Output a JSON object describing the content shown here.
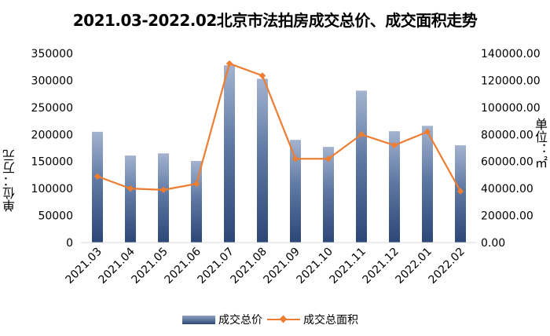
{
  "chart_data": {
    "type": "bar",
    "title": "2021.03-2022.02北京市法拍房成交总价、成交面积走势",
    "categories": [
      "2021.03",
      "2021.04",
      "2021.05",
      "2021.06",
      "2021.07",
      "2021.08",
      "2021.09",
      "2021.10",
      "2021.11",
      "2021.12",
      "2022.01",
      "2022.02"
    ],
    "series": [
      {
        "name": "成交总价",
        "type": "bar",
        "axis": "left",
        "values": [
          205000,
          161000,
          165000,
          151000,
          328000,
          303000,
          190000,
          177000,
          281000,
          206000,
          216000,
          180000
        ],
        "color": "#3b5583"
      },
      {
        "name": "成交总面积",
        "type": "line",
        "axis": "right",
        "values": [
          49000,
          40000,
          39000,
          43500,
          132500,
          123500,
          62000,
          62000,
          80000,
          72000,
          82000,
          38000
        ],
        "color": "#ed7d31"
      }
    ],
    "ylabel": "单位：万元",
    "ylim": [
      0,
      350000
    ],
    "yticks": [
      "0",
      "50000",
      "100000",
      "150000",
      "200000",
      "250000",
      "300000",
      "350000"
    ],
    "y2label": "单位：㎡",
    "y2lim": [
      0,
      140000
    ],
    "y2ticks": [
      "0.00",
      "20000.00",
      "40000.00",
      "60000.00",
      "80000.00",
      "100000.00",
      "120000.00",
      "140000.00"
    ],
    "grid": false,
    "legend_position": "bottom"
  }
}
